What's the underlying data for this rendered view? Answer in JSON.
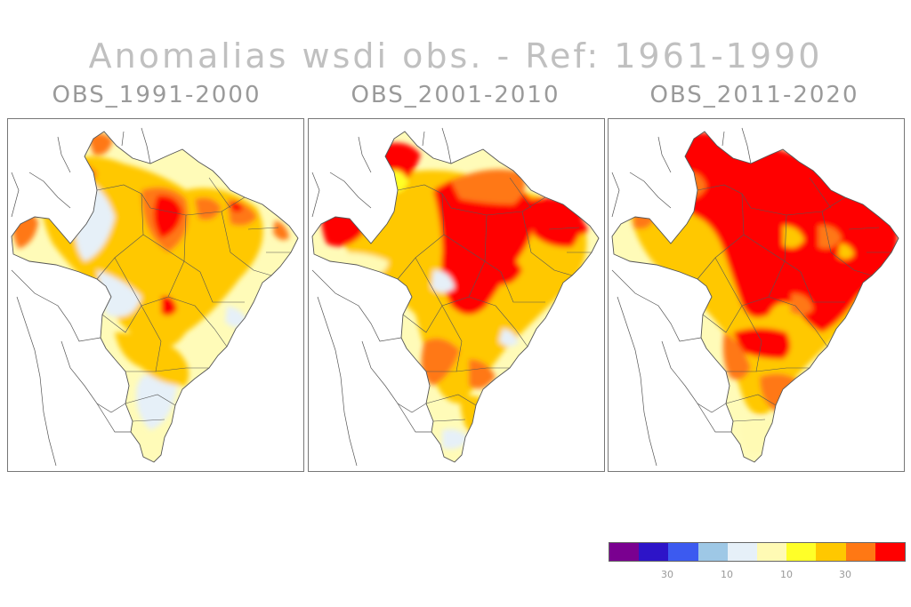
{
  "title": "Anomalias wsdi obs. - Ref: 1961-1990",
  "panels": [
    {
      "label": "OBS_1991-2000"
    },
    {
      "label": "OBS_2001-2010"
    },
    {
      "label": "OBS_2011-2020"
    }
  ],
  "colorbar": {
    "colors": [
      "#7a0090",
      "#2d14c8",
      "#3c5af0",
      "#9ec8e6",
      "#e6f0f8",
      "#fffab4",
      "#ffff28",
      "#ffc800",
      "#ff7814",
      "#ff0000"
    ],
    "tick_labels": [
      "30",
      "10",
      "10",
      "30"
    ]
  },
  "map_colors": {
    "outline": "#555555",
    "land_base": "#fffbb8"
  }
}
